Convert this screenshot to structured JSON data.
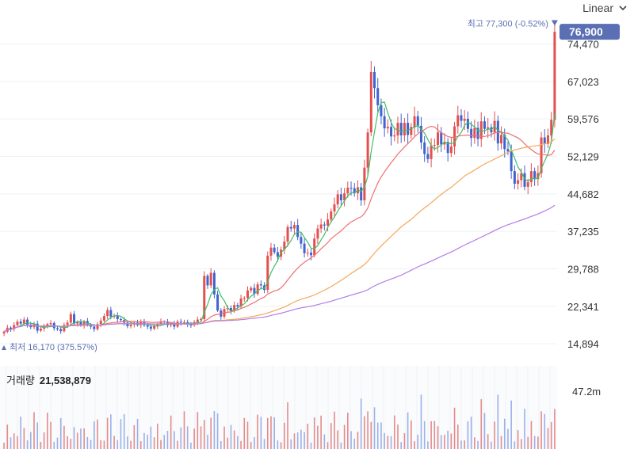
{
  "scale_selector": {
    "label": "Linear"
  },
  "chart_data": {
    "type": "candlestick",
    "price_axis": {
      "ticks": [
        "74,470",
        "67,023",
        "59,576",
        "52,129",
        "44,682",
        "37,235",
        "29,788",
        "22,341",
        "14,894"
      ],
      "tick_values": [
        74470,
        67023,
        59576,
        52129,
        44682,
        37235,
        29788,
        22341,
        14894
      ],
      "ylim": [
        13500,
        78800
      ]
    },
    "last_price": {
      "label": "76,900",
      "value": 76900,
      "color": "#5a6fb4"
    },
    "high": {
      "label": "최고 77,300 (-0.52%)",
      "value": 77300
    },
    "low": {
      "label": "최저 16,170 (375.57%)",
      "value": 16170
    },
    "colors": {
      "up": "#e4504f",
      "down": "#3f63cf",
      "ma5": "#3fbf66",
      "ma20": "#ef6f6f",
      "ma60": "#f4a65a",
      "ma120": "#b37de6",
      "volume": "#e48b8b",
      "volume_down": "#9bb0e8"
    },
    "series_close": [
      17300,
      18100,
      17800,
      18600,
      19300,
      18900,
      19700,
      18700,
      18200,
      18900,
      17500,
      17900,
      18300,
      18800,
      19000,
      18000,
      17800,
      17400,
      18600,
      19100,
      20800,
      18900,
      19200,
      18500,
      19400,
      18700,
      18300,
      17800,
      18800,
      19500,
      20400,
      21600,
      20300,
      20500,
      19800,
      19600,
      19100,
      18400,
      18700,
      19100,
      18600,
      19300,
      18600,
      18300,
      17900,
      18400,
      18800,
      19300,
      19200,
      18600,
      18900,
      18300,
      19300,
      19100,
      19200,
      18700,
      18600,
      19200,
      19700,
      19800,
      28400,
      26500,
      29000,
      24700,
      21500,
      20300,
      21800,
      22000,
      21400,
      22600,
      22300,
      23900,
      24000,
      25500,
      26000,
      24800,
      26700,
      26500,
      25600,
      32400,
      34000,
      33100,
      32200,
      33600,
      35200,
      38100,
      37800,
      38500,
      36100,
      34800,
      32900,
      33000,
      32500,
      35800,
      37800,
      38600,
      38400,
      39600,
      41200,
      42600,
      44600,
      43400,
      44800,
      45900,
      45800,
      44800,
      46000,
      43400,
      49900,
      56900,
      68900,
      65700,
      62300,
      60100,
      57700,
      58000,
      56100,
      56300,
      58800,
      56300,
      58800,
      56400,
      58000,
      60100,
      58200,
      54900,
      52600,
      51600,
      54300,
      54400,
      56900,
      54500,
      55000,
      52800,
      54100,
      58100,
      60300,
      59200,
      59600,
      57600,
      55800,
      57800,
      55600,
      59100,
      57600,
      57900,
      56900,
      59200,
      54700,
      56400,
      53600,
      53100,
      49200,
      46700,
      47400,
      48800,
      46100,
      47000,
      49200,
      47600,
      48800,
      55900,
      54600,
      56300,
      59400,
      76900
    ],
    "volume": {
      "title": "거래량",
      "value_label": "21,538,879",
      "axis_tick": "47.2m"
    }
  }
}
